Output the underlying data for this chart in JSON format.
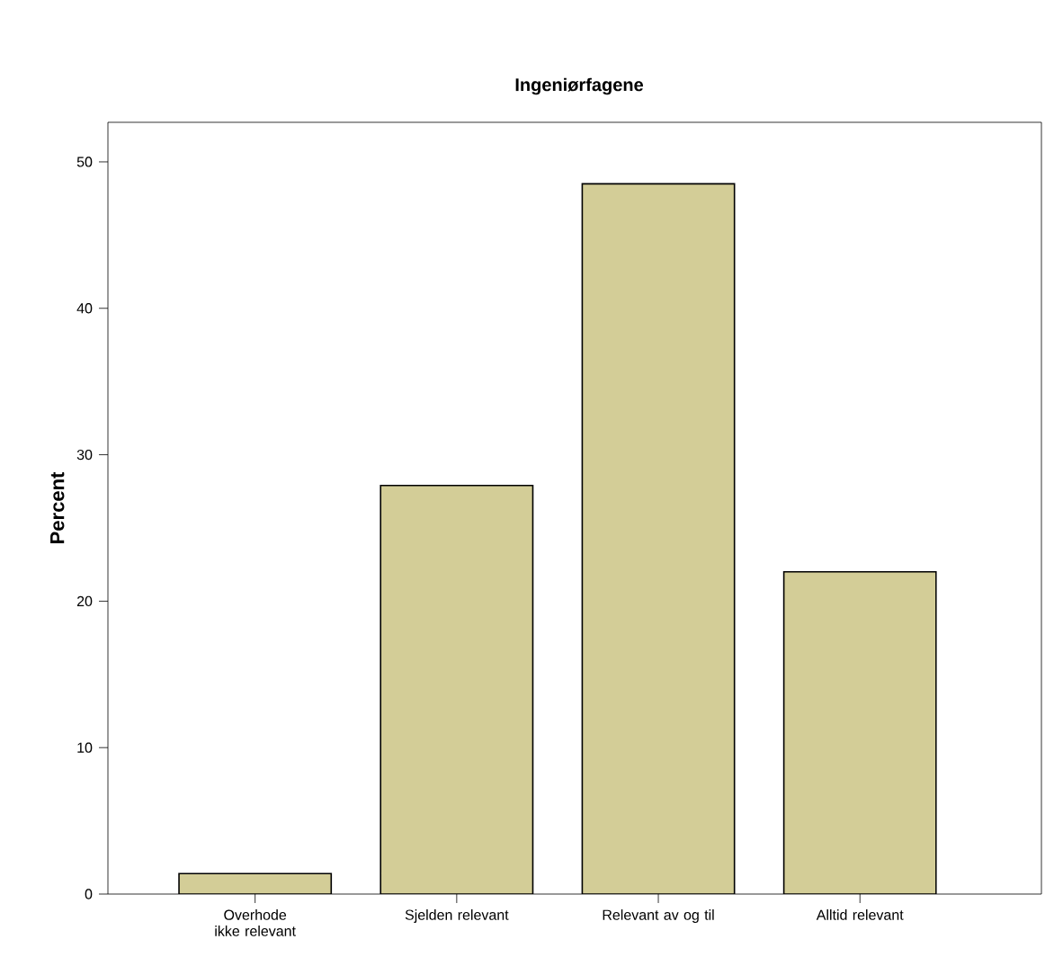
{
  "chart_data": {
    "type": "bar",
    "title": "Ingeniørfagene",
    "ylabel": "Percent",
    "categories": [
      "Overhode ikke relevant",
      "Sjelden relevant",
      "Relevant av og til",
      "Alltid relevant"
    ],
    "values": [
      1.4,
      27.9,
      48.5,
      22.0
    ],
    "color": "#d3cd97",
    "ylim": [
      0,
      52.7
    ],
    "yticks": [
      0,
      10,
      20,
      30,
      40,
      50
    ],
    "grid": false
  }
}
